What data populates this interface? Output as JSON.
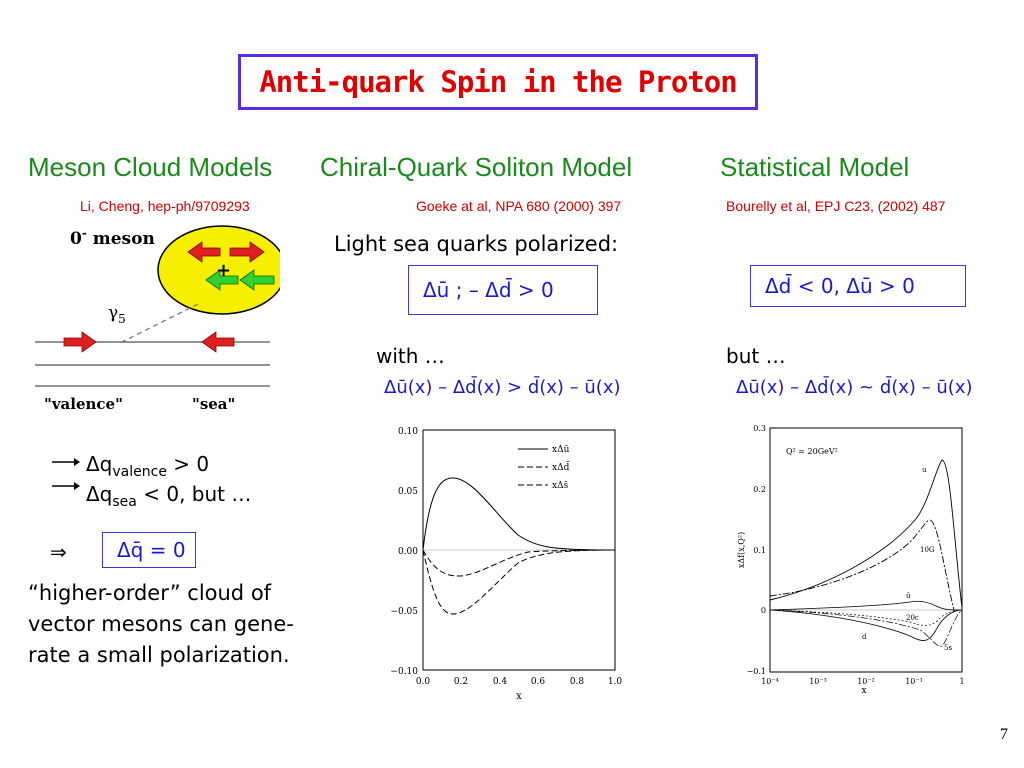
{
  "title": "Anti-quark Spin in the Proton",
  "columns": {
    "meson": {
      "heading": "Meson Cloud Models",
      "ref": "Li, Cheng, hep-ph/9709293",
      "diagram": {
        "meson_label": "0",
        "meson_sup": "-",
        "meson_word": " meson",
        "gamma": "γ",
        "gamma_sub": "5",
        "plus": "+",
        "valence": "\"valence\"",
        "sea": "\"sea\""
      },
      "line1_a": "Δq",
      "line1_sub": "valence",
      "line1_b": " > 0",
      "line2_a": "Δq",
      "line2_sub": "sea",
      "line2_b": " < 0, but …",
      "implies": "⇒",
      "box": "Δq̄ = 0",
      "note": "“higher-order” cloud of vector mesons can gene-rate a small polarization."
    },
    "chiral": {
      "heading": "Chiral-Quark Soliton Model",
      "ref": "Goeke at al, NPA 680 (2000) 397",
      "sub": "Light sea quarks polarized:",
      "box": "Δū ; – Δd̄ > 0",
      "with": "with …",
      "formula": "Δū(x) – Δd̄(x) > d̄(x) – ū(x)",
      "plot": {
        "legend": [
          "xΔū",
          "xΔd̄",
          "xΔs̄"
        ],
        "yticks": [
          "0.10",
          "0.05",
          "0.00",
          "−0.05",
          "−0.10"
        ],
        "xticks": [
          "0.0",
          "0.2",
          "0.4",
          "0.6",
          "0.8",
          "1.0"
        ],
        "xlabel": "x"
      }
    },
    "statistical": {
      "heading": "Statistical Model",
      "ref": "Bourelly et al, EPJ C23, (2002) 487",
      "box": "Δd̄ < 0,  Δū > 0",
      "but": "but …",
      "formula": "Δū(x) – Δd̄(x) ~ d̄(x) – ū(x)",
      "plot": {
        "q2": "Q² = 20GeV²",
        "ylabel": "xΔf(x,Q²)",
        "yticks": [
          "0.3",
          "0.2",
          "0.1",
          "0",
          "−0.1"
        ],
        "xticks": [
          "10⁻⁴",
          "10⁻³",
          "10⁻²",
          "10⁻¹",
          "1"
        ],
        "xlabel": "x",
        "labels": [
          "u",
          "10G",
          "ū",
          "20c",
          "d",
          "5s"
        ]
      }
    }
  },
  "page_number": "7",
  "colors": {
    "title": "#e00000",
    "title_border": "#5a2ee0",
    "heading": "#1a8a1a",
    "ref": "#d00000",
    "formula": "#1a1ad0"
  }
}
